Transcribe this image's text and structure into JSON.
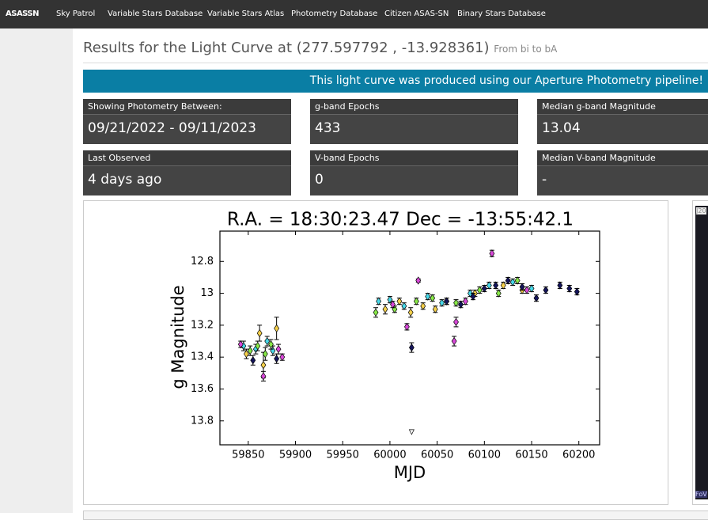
{
  "nav": {
    "logo": "ASASSN",
    "links": [
      "Sky Patrol",
      "Variable Stars Database",
      "Variable Stars Atlas",
      "Photometry Database",
      "Citizen ASAS-SN",
      "Binary Stars Database"
    ]
  },
  "header": {
    "title": "Results for the Light Curve at (277.597792 , -13.928361)",
    "subtitle": "From bi to bA"
  },
  "banner": "This light curve was produced using our Aperture Photometry pipeline!",
  "stats": [
    {
      "label": "Showing Photometry Between:",
      "value": "09/21/2022 - 09/11/2023"
    },
    {
      "label": "g-band Epochs",
      "value": "433"
    },
    {
      "label": "Median g-band Magnitude",
      "value": "13.04"
    },
    {
      "label": "Last Observed",
      "value": "4 days ago"
    },
    {
      "label": "V-band Epochs",
      "value": "0"
    },
    {
      "label": "Median V-band Magnitude",
      "value": "-"
    }
  ],
  "side_panel": {
    "top": "J20",
    "bottom": "FoV"
  },
  "chart_data": {
    "type": "scatter",
    "title": "R.A. = 18:30:23.47   Dec = -13:55:42.1",
    "xlabel": "MJD",
    "ylabel": "g Magnitude",
    "xlim": [
      59820,
      60222
    ],
    "xticks": [
      59850,
      59900,
      59950,
      60000,
      60050,
      60100,
      60150,
      60200
    ],
    "ylim": [
      13.95,
      12.61
    ],
    "yticks": [
      12.8,
      13.0,
      13.2,
      13.4,
      13.6,
      13.8
    ],
    "grid": false,
    "series": [
      {
        "color": "#f5d04a",
        "marker": "diamond",
        "x": [
          59848,
          59862,
          59866,
          59880,
          59995,
          60010,
          60022,
          60035,
          60048,
          60060,
          60090,
          60120,
          60140
        ],
        "values": [
          13.38,
          13.25,
          13.45,
          13.22,
          13.1,
          13.05,
          13.12,
          13.08,
          13.1,
          13.05,
          13.0,
          12.95,
          12.98
        ],
        "errors": [
          0.03,
          0.05,
          0.08,
          0.07,
          0.03,
          0.02,
          0.03,
          0.02,
          0.02,
          0.02,
          0.02,
          0.02,
          0.02
        ]
      },
      {
        "color": "#48d8e8",
        "marker": "diamond",
        "x": [
          59845,
          59858,
          59870,
          59876,
          59988,
          60000,
          60015,
          60040,
          60055,
          60085,
          60105,
          60130,
          60150
        ],
        "values": [
          13.33,
          13.35,
          13.3,
          13.36,
          13.05,
          13.04,
          13.08,
          13.02,
          13.06,
          13.0,
          12.95,
          12.93,
          12.97
        ],
        "errors": [
          0.03,
          0.03,
          0.03,
          0.03,
          0.02,
          0.02,
          0.02,
          0.02,
          0.02,
          0.02,
          0.02,
          0.02,
          0.02
        ]
      },
      {
        "color": "#88e848",
        "marker": "diamond",
        "x": [
          59852,
          59860,
          59868,
          59874,
          59985,
          60005,
          60028,
          60045,
          60070,
          60095,
          60115,
          60135
        ],
        "values": [
          13.36,
          13.33,
          13.38,
          13.32,
          13.12,
          13.1,
          13.05,
          13.03,
          13.06,
          12.98,
          13.0,
          12.92
        ],
        "errors": [
          0.03,
          0.03,
          0.04,
          0.03,
          0.03,
          0.02,
          0.02,
          0.02,
          0.02,
          0.02,
          0.02,
          0.02
        ]
      },
      {
        "color": "#d848d8",
        "marker": "diamond",
        "x": [
          59842,
          59866,
          59882,
          59886,
          60003,
          60018,
          60030,
          60068,
          60070,
          60080,
          60108,
          60145
        ],
        "values": [
          13.32,
          13.52,
          13.35,
          13.4,
          13.07,
          13.21,
          12.92,
          13.3,
          13.18,
          13.05,
          12.75,
          12.98
        ],
        "errors": [
          0.02,
          0.03,
          0.03,
          0.02,
          0.02,
          0.02,
          0.01,
          0.03,
          0.03,
          0.02,
          0.02,
          0.02
        ]
      },
      {
        "color": "#14145a",
        "marker": "diamond",
        "x": [
          59855,
          59880,
          60023,
          60060,
          60075,
          60088,
          60100,
          60112,
          60125,
          60140,
          60155,
          60165,
          60180,
          60190,
          60198
        ],
        "values": [
          13.42,
          13.41,
          13.34,
          13.05,
          13.07,
          13.02,
          12.97,
          12.95,
          12.92,
          12.96,
          13.03,
          12.98,
          12.95,
          12.97,
          12.99
        ],
        "errors": [
          0.03,
          0.03,
          0.03,
          0.02,
          0.02,
          0.02,
          0.02,
          0.02,
          0.02,
          0.02,
          0.02,
          0.02,
          0.02,
          0.02,
          0.02
        ]
      },
      {
        "color": "#ffffff",
        "marker": "triangle",
        "x": [
          60023
        ],
        "values": [
          13.87
        ],
        "errors": [
          0
        ]
      }
    ]
  }
}
